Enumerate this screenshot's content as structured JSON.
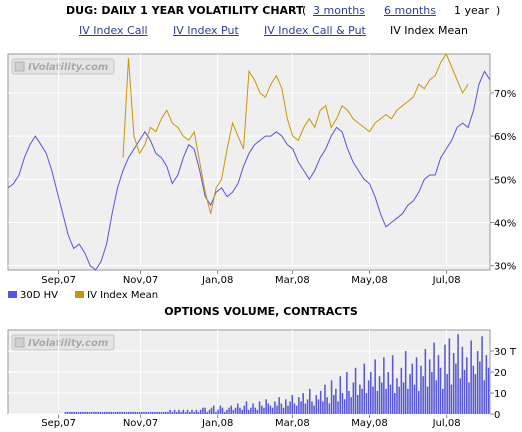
{
  "header": {
    "title": "DUG: DAILY 1 YEAR VOLATILITY CHART",
    "range_links": [
      {
        "label": "3 months",
        "active": false
      },
      {
        "label": "6 months",
        "active": false
      },
      {
        "label": "1 year",
        "active": true
      }
    ],
    "tabs": [
      {
        "label": "IV Index Call",
        "active": false
      },
      {
        "label": "IV Index Put",
        "active": false
      },
      {
        "label": "IV Index Call & Put",
        "active": false
      },
      {
        "label": "IV Index Mean",
        "active": true
      }
    ]
  },
  "watermark": "IVolatility.com",
  "chart_data": [
    {
      "type": "line",
      "x_tick_labels": [
        "Sep,07",
        "Nov,07",
        "Jan,08",
        "Mar,08",
        "May,08",
        "Jul,08"
      ],
      "y_tick_labels": [
        "30%",
        "40%",
        "50%",
        "60%",
        "70%"
      ],
      "ylim": [
        29,
        79
      ],
      "grid": true,
      "legend_position": "bottom-left",
      "colors": {
        "hv": "#5555dd",
        "iv": "#c8960a"
      },
      "series": [
        {
          "name": "30D HV",
          "values": [
            48,
            49,
            51,
            55,
            58,
            60,
            58,
            56,
            52,
            47,
            42,
            37,
            34,
            35,
            33,
            30,
            29,
            31,
            35,
            42,
            48,
            52,
            55,
            57,
            59,
            61,
            59,
            56,
            55,
            53,
            49,
            51,
            55,
            58,
            57,
            52,
            46,
            44,
            47,
            48,
            46,
            47,
            49,
            53,
            56,
            58,
            59,
            60,
            60,
            61,
            60,
            58,
            57,
            54,
            52,
            50,
            52,
            55,
            57,
            60,
            62,
            61,
            57,
            54,
            52,
            50,
            49,
            46,
            42,
            39,
            40,
            41,
            42,
            44,
            45,
            47,
            50,
            51,
            51,
            55,
            57,
            59,
            62,
            63,
            62,
            66,
            72,
            75,
            73
          ]
        },
        {
          "name": "IV Index Mean",
          "start_index": 21,
          "values": [
            55,
            78,
            60,
            56,
            58,
            62,
            61,
            64,
            66,
            63,
            62,
            60,
            59,
            61,
            54,
            47,
            42,
            48,
            50,
            57,
            63,
            60,
            57,
            75,
            73,
            70,
            69,
            72,
            74,
            71,
            64,
            60,
            59,
            62,
            64,
            62,
            66,
            67,
            62,
            64,
            67,
            66,
            64,
            63,
            62,
            61,
            63,
            64,
            65,
            64,
            66,
            67,
            68,
            69,
            72,
            71,
            73,
            74,
            77,
            79,
            76,
            73,
            70,
            72
          ]
        }
      ]
    },
    {
      "type": "bar",
      "title": "OPTIONS VOLUME, CONTRACTS",
      "x_tick_labels": [
        "Sep,07",
        "Nov,07",
        "Jan,08",
        "Mar,08",
        "May,08",
        "Jul,08"
      ],
      "y_tick_labels": [
        "0",
        "10",
        "20",
        "30 T"
      ],
      "ylim": [
        0,
        40
      ],
      "grid": true,
      "color": "#5555dd",
      "values": [
        0,
        0,
        0,
        0,
        0,
        0,
        0,
        0,
        0,
        0,
        0,
        0,
        0,
        0,
        0,
        0,
        0,
        0,
        0,
        0,
        0,
        0,
        0,
        0,
        0,
        0,
        1,
        1,
        1,
        1,
        1,
        1,
        1,
        1,
        1,
        1,
        1,
        1,
        1,
        1,
        1,
        1,
        1,
        1,
        1,
        1,
        1,
        1,
        1,
        1,
        1,
        1,
        1,
        1,
        1,
        1,
        1,
        1,
        1,
        1,
        1,
        1,
        1,
        1,
        1,
        1,
        1,
        1,
        1,
        1,
        1,
        1,
        1,
        1,
        2,
        1,
        2,
        1,
        2,
        1,
        2,
        1,
        2,
        1,
        2,
        1,
        2,
        1,
        2,
        3,
        3,
        1,
        2,
        3,
        4,
        1,
        2,
        4,
        3,
        1,
        2,
        3,
        4,
        2,
        3,
        5,
        3,
        2,
        4,
        6,
        2,
        3,
        5,
        3,
        2,
        6,
        4,
        3,
        7,
        5,
        4,
        3,
        6,
        4,
        8,
        5,
        3,
        7,
        4,
        6,
        9,
        5,
        4,
        8,
        6,
        10,
        5,
        7,
        12,
        6,
        4,
        9,
        7,
        11,
        6,
        14,
        8,
        5,
        16,
        9,
        12,
        6,
        18,
        10,
        7,
        20,
        11,
        8,
        15,
        22,
        9,
        14,
        12,
        24,
        10,
        16,
        20,
        13,
        26,
        11,
        18,
        15,
        27,
        12,
        20,
        14,
        28,
        10,
        17,
        13,
        22,
        15,
        30,
        12,
        19,
        24,
        14,
        27,
        11,
        23,
        18,
        31,
        13,
        26,
        20,
        34,
        16,
        28,
        22,
        12,
        33,
        19,
        36,
        14,
        29,
        24,
        38,
        17,
        32,
        21,
        27,
        15,
        35,
        23,
        19,
        30,
        25,
        37,
        16,
        28,
        22
      ]
    }
  ],
  "legend": [
    {
      "label": "30D HV",
      "color": "#5555dd"
    },
    {
      "label": "IV Index Mean",
      "color": "#c8960a"
    }
  ]
}
